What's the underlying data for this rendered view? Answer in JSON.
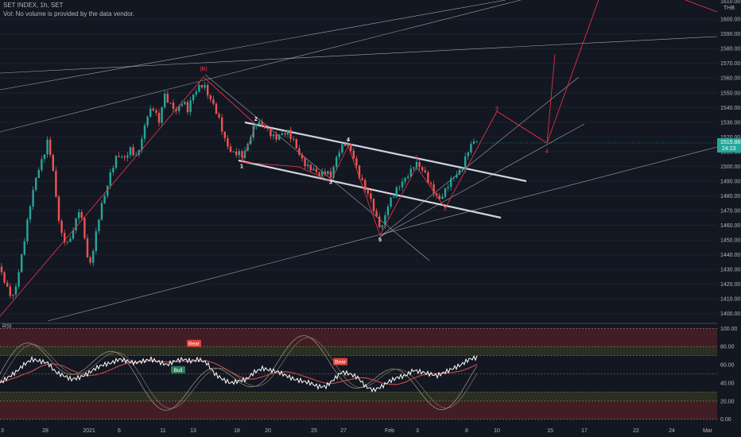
{
  "header": {
    "title": "SET INDEX, 1h, SET",
    "volume_note": "Vol: No volume is provided by the data vendor."
  },
  "colors": {
    "background": "#131722",
    "up": "#26a69a",
    "down": "#ef5350",
    "trendline": "#d1d4dc",
    "wave_line": "#f23645",
    "rsi_line": "#ffffff",
    "rsi_zone": "#4a1e26",
    "rsi_mid_zone": "#2e3222"
  },
  "chart_data": {
    "type": "candlestick",
    "currency_label": "THB",
    "top_partial_label": "1610.00",
    "price_axis": {
      "min": 1395,
      "max": 1613,
      "ticks": [
        "1600.00",
        "1590.00",
        "1580.00",
        "1570.00",
        "1560.00",
        "1550.00",
        "1540.00",
        "1530.00",
        "1520.00",
        "1510.00",
        "1500.00",
        "1490.00",
        "1480.00",
        "1470.00",
        "1460.00",
        "1450.00",
        "1440.00",
        "1430.00",
        "1420.00",
        "1410.00",
        "1400.00"
      ]
    },
    "last_price": {
      "value": "1515.88",
      "countdown": "24:23"
    },
    "x_axis_labels": [
      "3",
      "28",
      "2021",
      "6",
      "11",
      "13",
      "18",
      "20",
      "25",
      "27",
      "Feb",
      "3",
      "8",
      "10",
      "15",
      "17",
      "22",
      "24",
      "Mar"
    ],
    "price_path": [
      [
        0,
        1432
      ],
      [
        8,
        1418
      ],
      [
        16,
        1410
      ],
      [
        22,
        1422
      ],
      [
        30,
        1446
      ],
      [
        38,
        1472
      ],
      [
        46,
        1492
      ],
      [
        54,
        1504
      ],
      [
        60,
        1516
      ],
      [
        66,
        1500
      ],
      [
        72,
        1470
      ],
      [
        78,
        1452
      ],
      [
        86,
        1448
      ],
      [
        94,
        1462
      ],
      [
        100,
        1474
      ],
      [
        106,
        1456
      ],
      [
        112,
        1432
      ],
      [
        118,
        1448
      ],
      [
        126,
        1472
      ],
      [
        134,
        1486
      ],
      [
        140,
        1498
      ],
      [
        148,
        1508
      ],
      [
        156,
        1504
      ],
      [
        164,
        1510
      ],
      [
        172,
        1504
      ],
      [
        180,
        1520
      ],
      [
        186,
        1534
      ],
      [
        194,
        1538
      ],
      [
        200,
        1528
      ],
      [
        206,
        1548
      ],
      [
        214,
        1542
      ],
      [
        222,
        1538
      ],
      [
        230,
        1546
      ],
      [
        236,
        1540
      ],
      [
        242,
        1550
      ],
      [
        250,
        1556
      ],
      [
        256,
        1558
      ],
      [
        262,
        1550
      ],
      [
        268,
        1544
      ],
      [
        276,
        1532
      ],
      [
        284,
        1516
      ],
      [
        292,
        1508
      ],
      [
        300,
        1508
      ],
      [
        304,
        1505
      ],
      [
        310,
        1510
      ],
      [
        316,
        1520
      ],
      [
        322,
        1528
      ],
      [
        330,
        1526
      ],
      [
        338,
        1522
      ],
      [
        346,
        1518
      ],
      [
        354,
        1522
      ],
      [
        362,
        1524
      ],
      [
        370,
        1518
      ],
      [
        378,
        1508
      ],
      [
        386,
        1502
      ],
      [
        394,
        1500
      ],
      [
        402,
        1496
      ],
      [
        410,
        1498
      ],
      [
        416,
        1494
      ],
      [
        422,
        1504
      ],
      [
        428,
        1512
      ],
      [
        436,
        1515
      ],
      [
        444,
        1506
      ],
      [
        450,
        1494
      ],
      [
        458,
        1484
      ],
      [
        466,
        1476
      ],
      [
        474,
        1462
      ],
      [
        480,
        1456
      ],
      [
        486,
        1470
      ],
      [
        492,
        1478
      ],
      [
        500,
        1486
      ],
      [
        508,
        1492
      ],
      [
        516,
        1498
      ],
      [
        522,
        1505
      ],
      [
        528,
        1502
      ],
      [
        534,
        1498
      ],
      [
        540,
        1490
      ],
      [
        546,
        1484
      ],
      [
        552,
        1478
      ],
      [
        558,
        1482
      ],
      [
        564,
        1488
      ],
      [
        570,
        1492
      ],
      [
        576,
        1494
      ],
      [
        582,
        1498
      ],
      [
        588,
        1508
      ],
      [
        594,
        1514
      ],
      [
        600,
        1516
      ]
    ],
    "wave_labels": [
      {
        "text": "(B)",
        "price": 1565,
        "x": 256,
        "style": "red"
      },
      {
        "text": "2",
        "price": 1531,
        "x": 322,
        "style": "white"
      },
      {
        "text": "1",
        "price": 1499,
        "x": 304,
        "style": "white"
      },
      {
        "text": "3",
        "price": 1488,
        "x": 416,
        "style": "white"
      },
      {
        "text": "4",
        "price": 1517,
        "x": 438,
        "style": "white"
      },
      {
        "text": "5",
        "price": 1449,
        "x": 478,
        "style": "white"
      },
      {
        "text": "1",
        "price": 1505,
        "x": 524,
        "style": "red"
      },
      {
        "text": "2",
        "price": 1470,
        "x": 560,
        "style": "red"
      },
      {
        "text": "3",
        "price": 1538,
        "x": 625,
        "style": "red"
      },
      {
        "text": "4",
        "price": 1509,
        "x": 688,
        "style": "red"
      }
    ],
    "rsi": {
      "label": "RSI",
      "ticks": [
        "100.00",
        "80.00",
        "60.00",
        "40.00",
        "20.00",
        "0.00"
      ],
      "min": -2,
      "max": 102,
      "white_path": [
        [
          0,
          40
        ],
        [
          10,
          46
        ],
        [
          20,
          52
        ],
        [
          30,
          60
        ],
        [
          40,
          66
        ],
        [
          50,
          64
        ],
        [
          60,
          62
        ],
        [
          70,
          52
        ],
        [
          80,
          48
        ],
        [
          90,
          44
        ],
        [
          100,
          46
        ],
        [
          110,
          50
        ],
        [
          120,
          56
        ],
        [
          130,
          60
        ],
        [
          140,
          62
        ],
        [
          150,
          66
        ],
        [
          160,
          64
        ],
        [
          170,
          62
        ],
        [
          180,
          64
        ],
        [
          190,
          66
        ],
        [
          200,
          63
        ],
        [
          210,
          60
        ],
        [
          220,
          64
        ],
        [
          230,
          66
        ],
        [
          240,
          64
        ],
        [
          250,
          66
        ],
        [
          260,
          62
        ],
        [
          270,
          50
        ],
        [
          280,
          44
        ],
        [
          290,
          40
        ],
        [
          300,
          42
        ],
        [
          310,
          44
        ],
        [
          320,
          52
        ],
        [
          330,
          56
        ],
        [
          340,
          54
        ],
        [
          350,
          52
        ],
        [
          360,
          48
        ],
        [
          370,
          44
        ],
        [
          380,
          42
        ],
        [
          390,
          40
        ],
        [
          400,
          36
        ],
        [
          410,
          36
        ],
        [
          420,
          44
        ],
        [
          430,
          52
        ],
        [
          440,
          50
        ],
        [
          450,
          46
        ],
        [
          460,
          36
        ],
        [
          470,
          32
        ],
        [
          480,
          36
        ],
        [
          490,
          42
        ],
        [
          500,
          46
        ],
        [
          510,
          48
        ],
        [
          520,
          54
        ],
        [
          530,
          52
        ],
        [
          540,
          50
        ],
        [
          550,
          48
        ],
        [
          560,
          52
        ],
        [
          570,
          56
        ],
        [
          580,
          60
        ],
        [
          590,
          66
        ],
        [
          600,
          68
        ]
      ],
      "signals": [
        {
          "text": "Bear",
          "x": 244,
          "value": 83
        },
        {
          "text": "Bull",
          "x": 224,
          "value": 54
        },
        {
          "text": "Bear",
          "x": 428,
          "value": 63
        }
      ]
    }
  }
}
